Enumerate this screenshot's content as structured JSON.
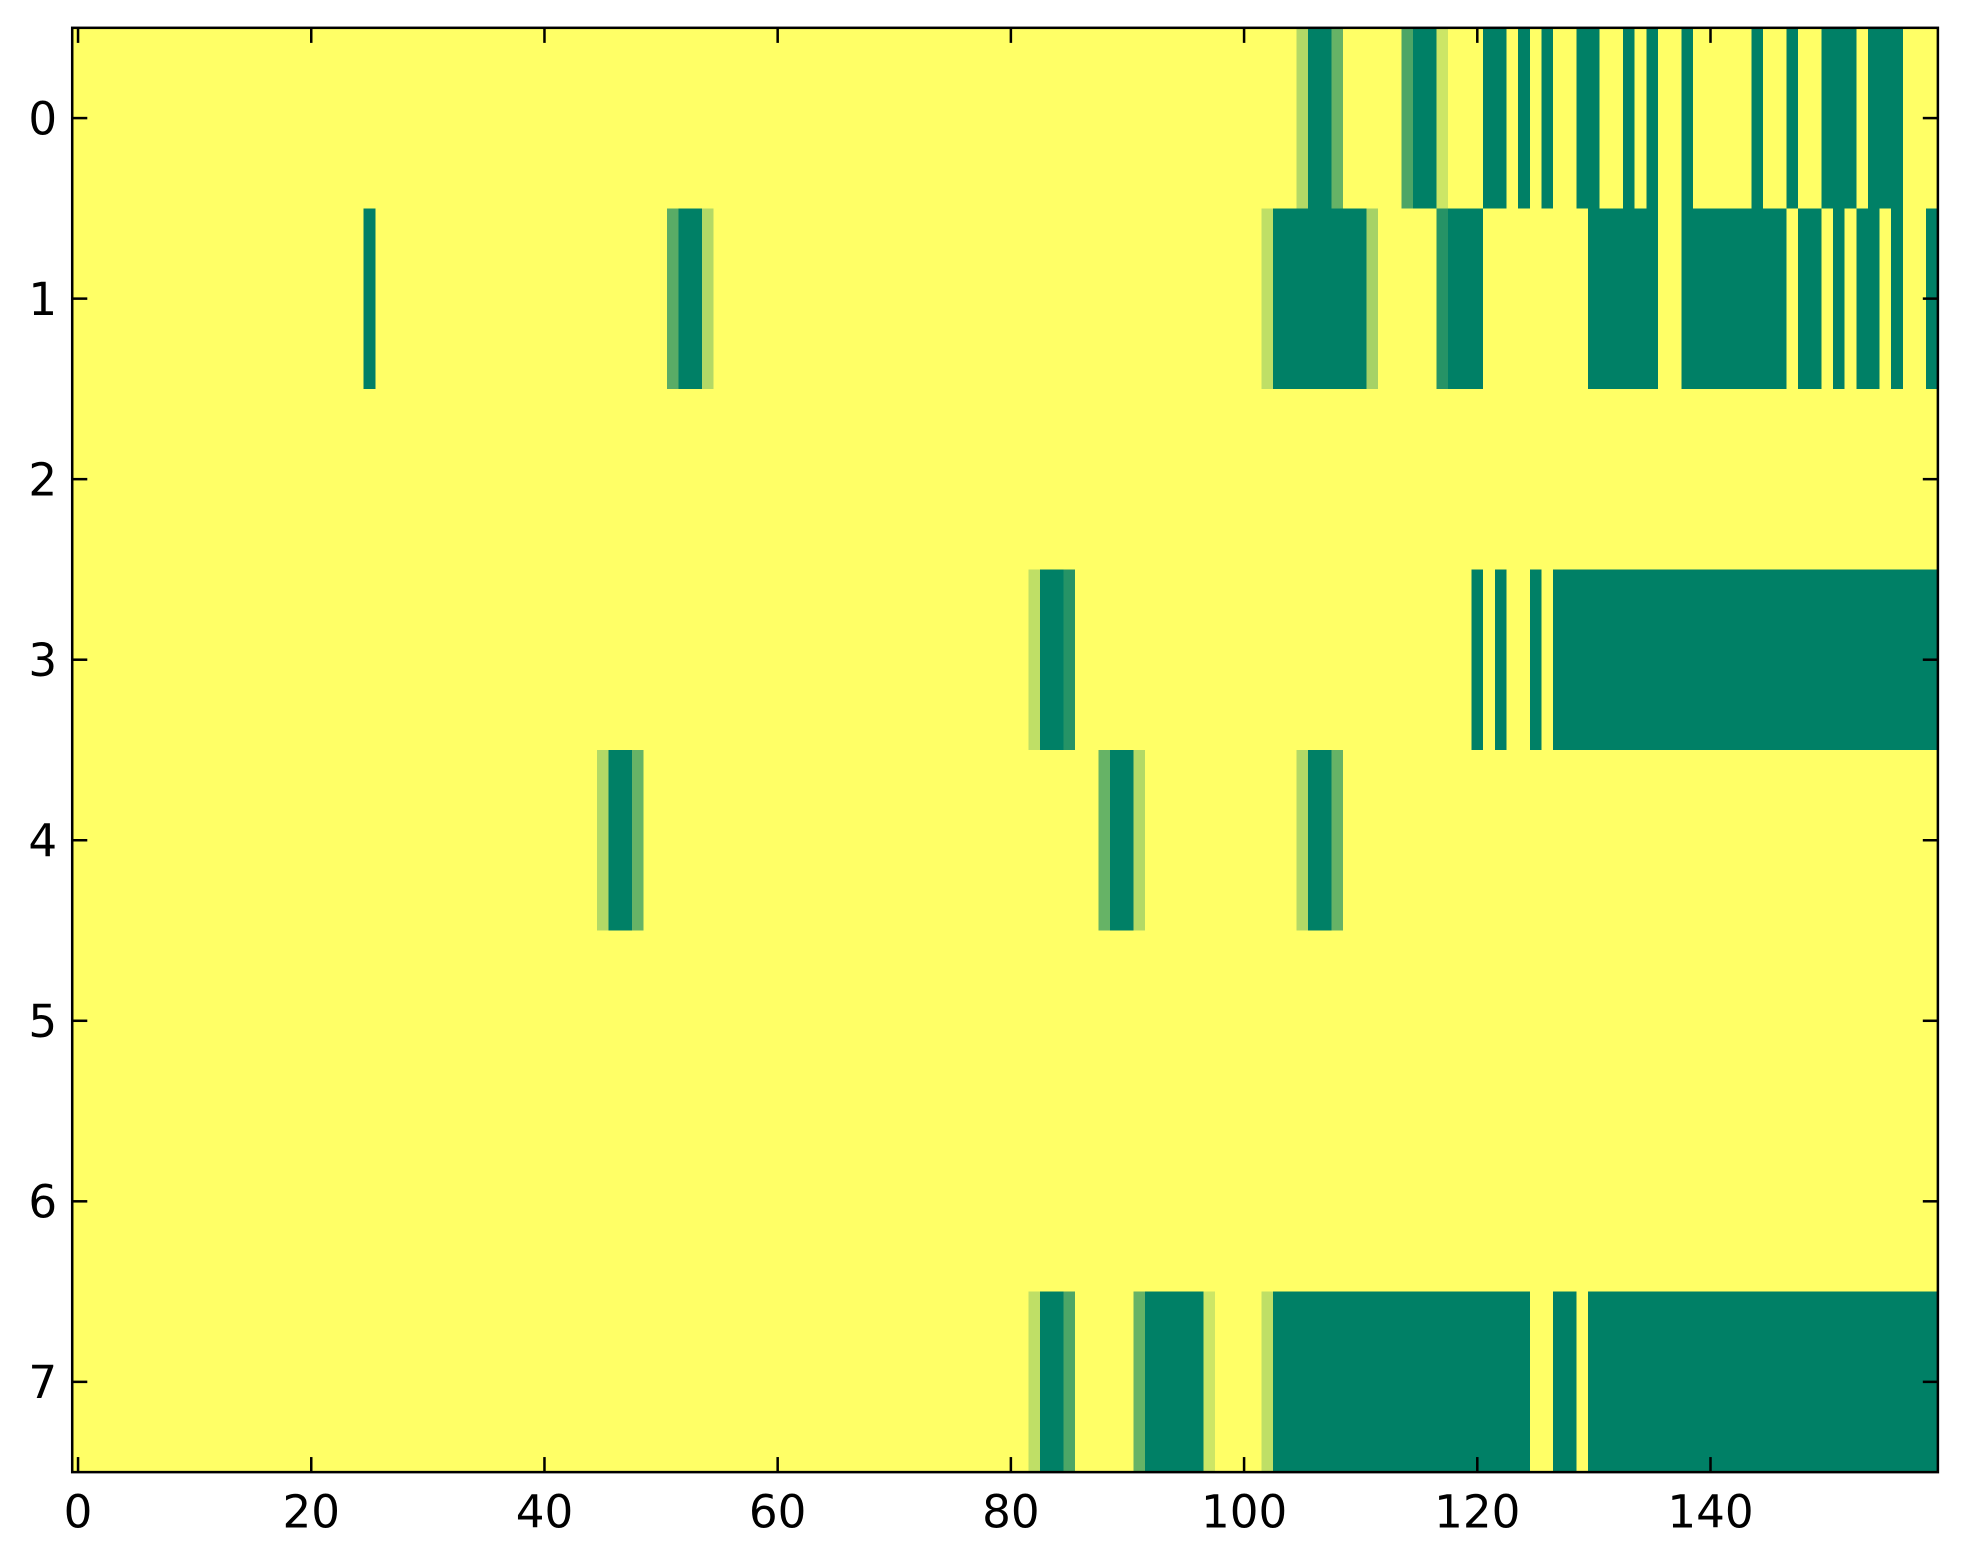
{
  "chart_data": {
    "type": "heatmap",
    "colormap": "summer_r",
    "xlim": [
      -0.5,
      159.5
    ],
    "ylim": [
      7.5,
      -0.5
    ],
    "xticks": [
      0,
      20,
      40,
      60,
      80,
      100,
      120,
      140
    ],
    "yticks": [
      0,
      1,
      2,
      3,
      4,
      5,
      6,
      7
    ],
    "z": [
      [
        0,
        0,
        0,
        0,
        0,
        0,
        0,
        0,
        0,
        0,
        0,
        0,
        0,
        0,
        0,
        0,
        0,
        0,
        0,
        0,
        0,
        0,
        0,
        0,
        0,
        0,
        0,
        0,
        0,
        0,
        0,
        0,
        0,
        0,
        0,
        0,
        0,
        0,
        0,
        0,
        0,
        0,
        0,
        0,
        0,
        0,
        0,
        0,
        0,
        0,
        0,
        0,
        0,
        0,
        0,
        0,
        0,
        0,
        0,
        0,
        0,
        0,
        0,
        0,
        0,
        0,
        0,
        0,
        0,
        0,
        0,
        0,
        0,
        0,
        0,
        0,
        0,
        0,
        0,
        0,
        0,
        0,
        0,
        0,
        0,
        0,
        0,
        0,
        0,
        0,
        0,
        0,
        0,
        0,
        0,
        0,
        0,
        0,
        0,
        0,
        0,
        0,
        0,
        0,
        0,
        0.3,
        1,
        1,
        0.6,
        0,
        0,
        0,
        0,
        0,
        0.7,
        1,
        1,
        0.2,
        0,
        0,
        0,
        1,
        1,
        0,
        1,
        0,
        1,
        0,
        0,
        1,
        1,
        0,
        0,
        1,
        0,
        1,
        0,
        0,
        1,
        0,
        0,
        0,
        0,
        0,
        1,
        0,
        0,
        1,
        0,
        0,
        1,
        1,
        1,
        0,
        1,
        1,
        1,
        0,
        0,
        0
      ],
      [
        0,
        0,
        0,
        0,
        0,
        0,
        0,
        0,
        0,
        0,
        0,
        0,
        0,
        0,
        0,
        0,
        0,
        0,
        0,
        0,
        0,
        0,
        0,
        0,
        0,
        1,
        0,
        0,
        0,
        0,
        0,
        0,
        0,
        0,
        0,
        0,
        0,
        0,
        0,
        0,
        0,
        0,
        0,
        0,
        0,
        0,
        0,
        0,
        0,
        0,
        0,
        0.65,
        1,
        1,
        0.3,
        0,
        0,
        0,
        0,
        0,
        0,
        0,
        0,
        0,
        0,
        0,
        0,
        0,
        0,
        0,
        0,
        0,
        0,
        0,
        0,
        0,
        0,
        0,
        0,
        0,
        0,
        0,
        0,
        0,
        0,
        0,
        0,
        0,
        0,
        0,
        0,
        0,
        0,
        0,
        0,
        0,
        0,
        0,
        0,
        0,
        0,
        0,
        0.25,
        1,
        1,
        1,
        1,
        1,
        1,
        1,
        1,
        0.35,
        0,
        0,
        0,
        0,
        0,
        0.85,
        1,
        1,
        1,
        0,
        0,
        0,
        0,
        0,
        0,
        0,
        0,
        0,
        1,
        1,
        1,
        1,
        1,
        1,
        0,
        0,
        1,
        1,
        1,
        1,
        1,
        1,
        1,
        1,
        1,
        0,
        1,
        1,
        0,
        1,
        0,
        1,
        1,
        0,
        1,
        0,
        0,
        1
      ],
      [
        0,
        0,
        0,
        0,
        0,
        0,
        0,
        0,
        0,
        0,
        0,
        0,
        0,
        0,
        0,
        0,
        0,
        0,
        0,
        0,
        0,
        0,
        0,
        0,
        0,
        0,
        0,
        0,
        0,
        0,
        0,
        0,
        0,
        0,
        0,
        0,
        0,
        0,
        0,
        0,
        0,
        0,
        0,
        0,
        0,
        0,
        0,
        0,
        0,
        0,
        0,
        0,
        0,
        0,
        0,
        0,
        0,
        0,
        0,
        0,
        0,
        0,
        0,
        0,
        0,
        0,
        0,
        0,
        0,
        0,
        0,
        0,
        0,
        0,
        0,
        0,
        0,
        0,
        0,
        0,
        0,
        0,
        0,
        0,
        0,
        0,
        0,
        0,
        0,
        0,
        0,
        0,
        0,
        0,
        0,
        0,
        0,
        0,
        0,
        0,
        0,
        0,
        0,
        0,
        0,
        0,
        0,
        0,
        0,
        0,
        0,
        0,
        0,
        0,
        0,
        0,
        0,
        0,
        0,
        0,
        0,
        0,
        0,
        0,
        0,
        0,
        0,
        0,
        0,
        0,
        0,
        0,
        0,
        0,
        0,
        0,
        0,
        0,
        0,
        0,
        0,
        0,
        0,
        0,
        0,
        0,
        0,
        0,
        0,
        0,
        0,
        0,
        0,
        0,
        0,
        0,
        0,
        0,
        0,
        0
      ],
      [
        0,
        0,
        0,
        0,
        0,
        0,
        0,
        0,
        0,
        0,
        0,
        0,
        0,
        0,
        0,
        0,
        0,
        0,
        0,
        0,
        0,
        0,
        0,
        0,
        0,
        0,
        0,
        0,
        0,
        0,
        0,
        0,
        0,
        0,
        0,
        0,
        0,
        0,
        0,
        0,
        0,
        0,
        0,
        0,
        0,
        0,
        0,
        0,
        0,
        0,
        0,
        0,
        0,
        0,
        0,
        0,
        0,
        0,
        0,
        0,
        0,
        0,
        0,
        0,
        0,
        0,
        0,
        0,
        0,
        0,
        0,
        0,
        0,
        0,
        0,
        0,
        0,
        0,
        0,
        0,
        0,
        0,
        0.25,
        1,
        1,
        0.85,
        0,
        0,
        0,
        0,
        0,
        0,
        0,
        0,
        0,
        0,
        0,
        0,
        0,
        0,
        0,
        0,
        0,
        0,
        0,
        0,
        0,
        0,
        0,
        0,
        0,
        0,
        0,
        0,
        0,
        0,
        0,
        0,
        0,
        0,
        1,
        0,
        1,
        0,
        0,
        1,
        0,
        1,
        1,
        1,
        1,
        1,
        1,
        1,
        1,
        1,
        1,
        1,
        1,
        1,
        1,
        1,
        1,
        1,
        1,
        1,
        1,
        1,
        1,
        1,
        1,
        1,
        1,
        1,
        1,
        1,
        1,
        1,
        1,
        1
      ],
      [
        0,
        0,
        0,
        0,
        0,
        0,
        0,
        0,
        0,
        0,
        0,
        0,
        0,
        0,
        0,
        0,
        0,
        0,
        0,
        0,
        0,
        0,
        0,
        0,
        0,
        0,
        0,
        0,
        0,
        0,
        0,
        0,
        0,
        0,
        0,
        0,
        0,
        0,
        0,
        0,
        0,
        0,
        0,
        0,
        0,
        0.3,
        1,
        1,
        0.6,
        0,
        0,
        0,
        0,
        0,
        0,
        0,
        0,
        0,
        0,
        0,
        0,
        0,
        0,
        0,
        0,
        0,
        0,
        0,
        0,
        0,
        0,
        0,
        0,
        0,
        0,
        0,
        0,
        0,
        0,
        0,
        0,
        0,
        0,
        0,
        0,
        0,
        0,
        0,
        0.6,
        1,
        1,
        0.3,
        0,
        0,
        0,
        0,
        0,
        0,
        0,
        0,
        0,
        0,
        0,
        0,
        0,
        0.3,
        1,
        1,
        0.6,
        0,
        0,
        0,
        0,
        0,
        0,
        0,
        0,
        0,
        0,
        0,
        0,
        0,
        0,
        0,
        0,
        0,
        0,
        0,
        0,
        0,
        0,
        0,
        0,
        0,
        0,
        0,
        0,
        0,
        0,
        0,
        0,
        0,
        0,
        0,
        0,
        0,
        0,
        0,
        0,
        0,
        0,
        0,
        0,
        0,
        0,
        0,
        0,
        0,
        0,
        0
      ],
      [
        0,
        0,
        0,
        0,
        0,
        0,
        0,
        0,
        0,
        0,
        0,
        0,
        0,
        0,
        0,
        0,
        0,
        0,
        0,
        0,
        0,
        0,
        0,
        0,
        0,
        0,
        0,
        0,
        0,
        0,
        0,
        0,
        0,
        0,
        0,
        0,
        0,
        0,
        0,
        0,
        0,
        0,
        0,
        0,
        0,
        0,
        0,
        0,
        0,
        0,
        0,
        0,
        0,
        0,
        0,
        0,
        0,
        0,
        0,
        0,
        0,
        0,
        0,
        0,
        0,
        0,
        0,
        0,
        0,
        0,
        0,
        0,
        0,
        0,
        0,
        0,
        0,
        0,
        0,
        0,
        0,
        0,
        0,
        0,
        0,
        0,
        0,
        0,
        0,
        0,
        0,
        0,
        0,
        0,
        0,
        0,
        0,
        0,
        0,
        0,
        0,
        0,
        0,
        0,
        0,
        0,
        0,
        0,
        0,
        0,
        0,
        0,
        0,
        0,
        0,
        0,
        0,
        0,
        0,
        0,
        0,
        0,
        0,
        0,
        0,
        0,
        0,
        0,
        0,
        0,
        0,
        0,
        0,
        0,
        0,
        0,
        0,
        0,
        0,
        0,
        0,
        0,
        0,
        0,
        0,
        0,
        0,
        0,
        0,
        0,
        0,
        0,
        0,
        0,
        0,
        0,
        0,
        0,
        0,
        0
      ],
      [
        0,
        0,
        0,
        0,
        0,
        0,
        0,
        0,
        0,
        0,
        0,
        0,
        0,
        0,
        0,
        0,
        0,
        0,
        0,
        0,
        0,
        0,
        0,
        0,
        0,
        0,
        0,
        0,
        0,
        0,
        0,
        0,
        0,
        0,
        0,
        0,
        0,
        0,
        0,
        0,
        0,
        0,
        0,
        0,
        0,
        0,
        0,
        0,
        0,
        0,
        0,
        0,
        0,
        0,
        0,
        0,
        0,
        0,
        0,
        0,
        0,
        0,
        0,
        0,
        0,
        0,
        0,
        0,
        0,
        0,
        0,
        0,
        0,
        0,
        0,
        0,
        0,
        0,
        0,
        0,
        0,
        0,
        0,
        0,
        0,
        0,
        0,
        0,
        0,
        0,
        0,
        0,
        0,
        0,
        0,
        0,
        0,
        0,
        0,
        0,
        0,
        0,
        0,
        0,
        0,
        0,
        0,
        0,
        0,
        0,
        0,
        0,
        0,
        0,
        0,
        0,
        0,
        0,
        0,
        0,
        0,
        0,
        0,
        0,
        0,
        0,
        0,
        0,
        0,
        0,
        0,
        0,
        0,
        0,
        0,
        0,
        0,
        0,
        0,
        0,
        0,
        0,
        0,
        0,
        0,
        0,
        0,
        0,
        0,
        0,
        0,
        0,
        0,
        0,
        0,
        0,
        0,
        0,
        0,
        0
      ],
      [
        0,
        0,
        0,
        0,
        0,
        0,
        0,
        0,
        0,
        0,
        0,
        0,
        0,
        0,
        0,
        0,
        0,
        0,
        0,
        0,
        0,
        0,
        0,
        0,
        0,
        0,
        0,
        0,
        0,
        0,
        0,
        0,
        0,
        0,
        0,
        0,
        0,
        0,
        0,
        0,
        0,
        0,
        0,
        0,
        0,
        0,
        0,
        0,
        0,
        0,
        0,
        0,
        0,
        0,
        0,
        0,
        0,
        0,
        0,
        0,
        0,
        0,
        0,
        0,
        0,
        0,
        0,
        0,
        0,
        0,
        0,
        0,
        0,
        0,
        0,
        0,
        0,
        0,
        0,
        0,
        0,
        0,
        0.25,
        1,
        1,
        0.7,
        0,
        0,
        0,
        0,
        0,
        0.6,
        1,
        1,
        1,
        1,
        1,
        0.2,
        0,
        0,
        0,
        0,
        0.25,
        1,
        1,
        1,
        1,
        1,
        1,
        1,
        1,
        1,
        1,
        1,
        1,
        1,
        1,
        1,
        1,
        1,
        1,
        1,
        1,
        1,
        1,
        0,
        0,
        1,
        1,
        0,
        1,
        1,
        1,
        1,
        1,
        1,
        1,
        1,
        1,
        1,
        1,
        1,
        1,
        1,
        1,
        1,
        1,
        1,
        1,
        1,
        1,
        1,
        1,
        1,
        1,
        1,
        1,
        1,
        1,
        1
      ]
    ]
  }
}
